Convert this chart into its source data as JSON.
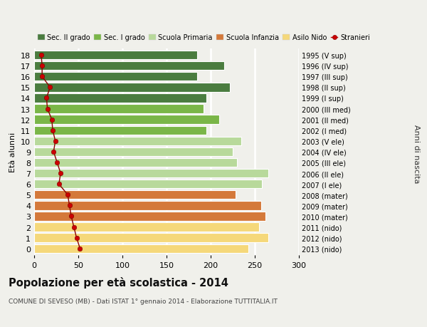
{
  "ages": [
    18,
    17,
    16,
    15,
    14,
    13,
    12,
    11,
    10,
    9,
    8,
    7,
    6,
    5,
    4,
    3,
    2,
    1,
    0
  ],
  "right_labels": [
    "1995 (V sup)",
    "1996 (IV sup)",
    "1997 (III sup)",
    "1998 (II sup)",
    "1999 (I sup)",
    "2000 (III med)",
    "2001 (II med)",
    "2002 (I med)",
    "2003 (V ele)",
    "2004 (IV ele)",
    "2005 (III ele)",
    "2006 (II ele)",
    "2007 (I ele)",
    "2008 (mater)",
    "2009 (mater)",
    "2010 (mater)",
    "2011 (nido)",
    "2012 (nido)",
    "2013 (nido)"
  ],
  "bar_values": [
    185,
    215,
    185,
    222,
    195,
    192,
    210,
    195,
    235,
    225,
    230,
    265,
    258,
    228,
    257,
    262,
    255,
    265,
    243
  ],
  "bar_colors": [
    "#4a7c3f",
    "#4a7c3f",
    "#4a7c3f",
    "#4a7c3f",
    "#4a7c3f",
    "#7ab648",
    "#7ab648",
    "#7ab648",
    "#b8d99b",
    "#b8d99b",
    "#b8d99b",
    "#b8d99b",
    "#b8d99b",
    "#d4793a",
    "#d4793a",
    "#d4793a",
    "#f5d87a",
    "#f5d87a",
    "#f5d87a"
  ],
  "stranieri_values": [
    8,
    9,
    9,
    18,
    14,
    15,
    20,
    21,
    24,
    22,
    26,
    30,
    28,
    38,
    40,
    42,
    45,
    48,
    52
  ],
  "title": "Popolazione per età scolastica - 2014",
  "subtitle": "COMUNE DI SEVESO (MB) - Dati ISTAT 1° gennaio 2014 - Elaborazione TUTTITALIA.IT",
  "ylabel_left": "Età alunni",
  "ylabel_right": "Anni di nascita",
  "xlim": [
    0,
    300
  ],
  "xticks": [
    0,
    50,
    100,
    150,
    200,
    250,
    300
  ],
  "legend_labels": [
    "Sec. II grado",
    "Sec. I grado",
    "Scuola Primaria",
    "Scuola Infanzia",
    "Asilo Nido",
    "Stranieri"
  ],
  "legend_colors": [
    "#4a7c3f",
    "#7ab648",
    "#b8d99b",
    "#d4793a",
    "#f5d87a",
    "#cc0000"
  ],
  "bg_color": "#f0f0eb",
  "grid_color": "#ffffff",
  "bar_height": 0.82
}
